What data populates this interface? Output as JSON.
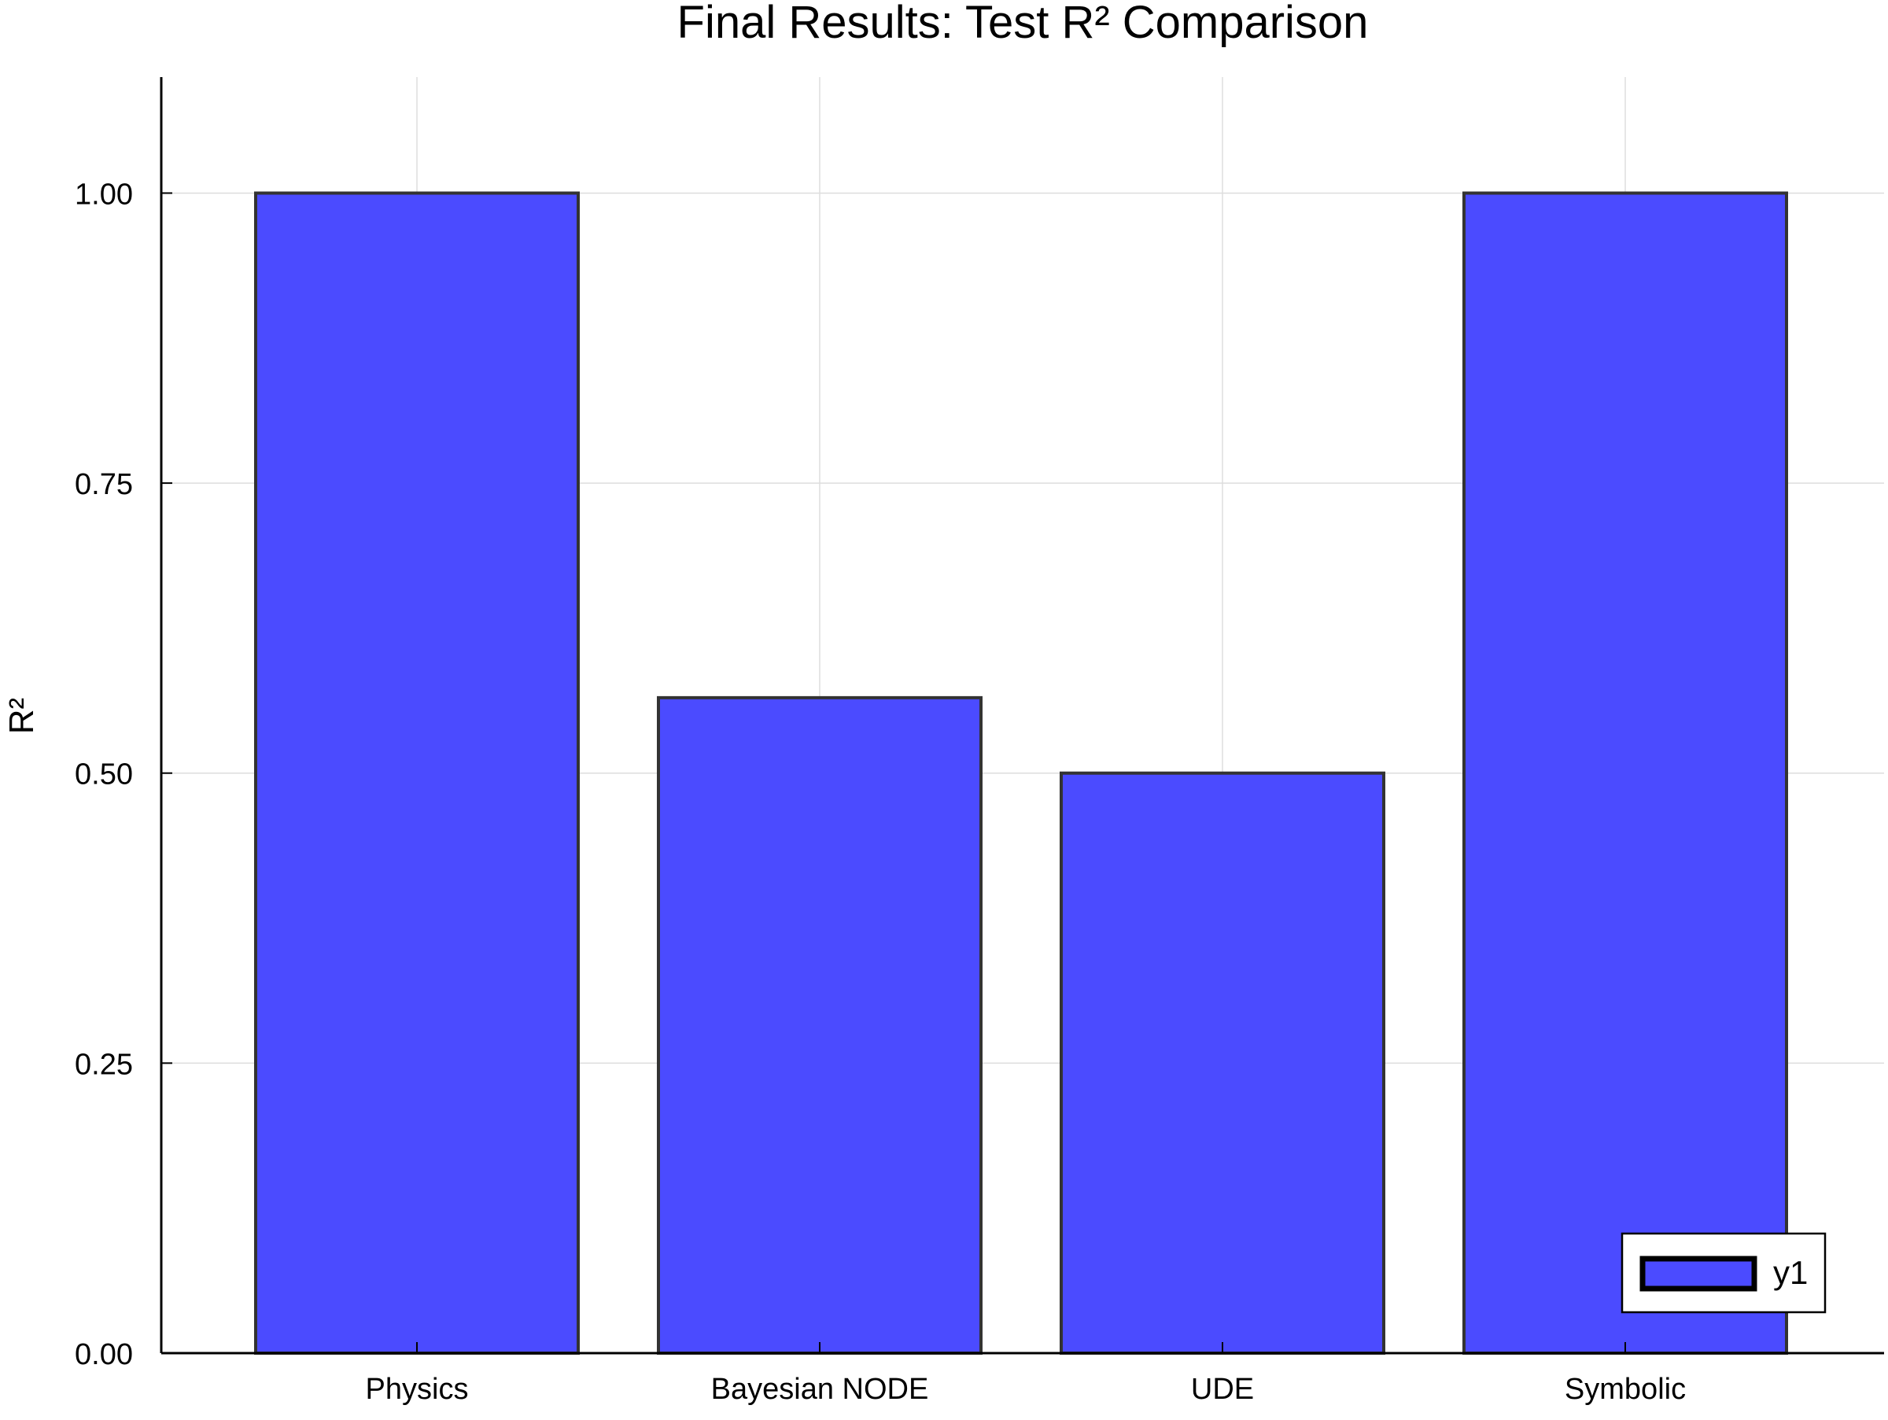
{
  "chart_data": {
    "type": "bar",
    "title": "Final Results: Test R² Comparison",
    "xlabel": "",
    "ylabel": "R²",
    "categories": [
      "Physics",
      "Bayesian NODE",
      "UDE",
      "Symbolic"
    ],
    "series": [
      {
        "name": "y1",
        "values": [
          1.0,
          0.565,
          0.5,
          1.0
        ]
      }
    ],
    "ylim": [
      0,
      1.1
    ],
    "yticks": [
      0,
      0.25,
      0.5,
      0.75,
      1.0
    ],
    "ytick_labels": [
      "0.00",
      "0.25",
      "0.50",
      "0.75",
      "1.00"
    ],
    "grid": true,
    "legend_position": "bottom-right",
    "colors": {
      "bar_fill": "#4b4bff",
      "bar_stroke": "#333333",
      "grid": "#dddddd",
      "axis": "#000000"
    }
  }
}
